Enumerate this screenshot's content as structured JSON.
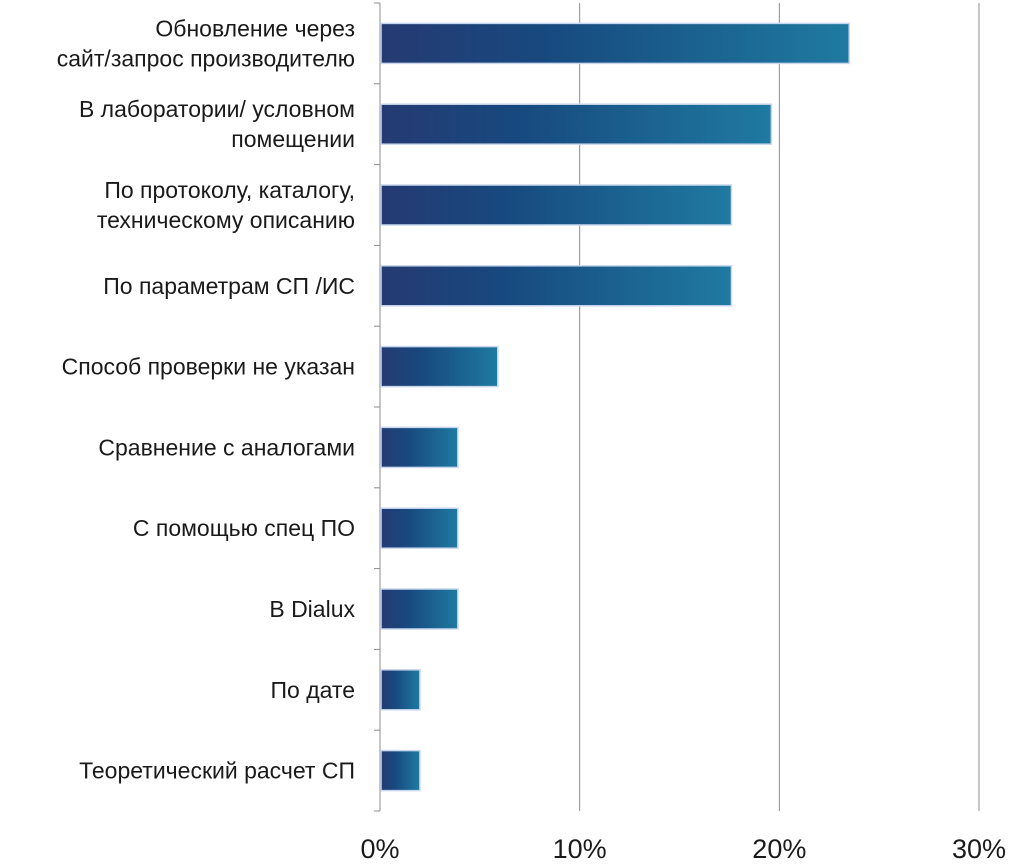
{
  "chart_data": {
    "type": "bar",
    "orientation": "horizontal",
    "title": "",
    "xlabel": "",
    "ylabel": "",
    "categories": [
      [
        "Обновление через",
        "сайт/запрос производителю"
      ],
      [
        "В лаборатории/ условном",
        "помещении"
      ],
      [
        "По протоколу, каталогу,",
        "техническому описанию"
      ],
      [
        "По параметрам СП /ИС"
      ],
      [
        "Способ проверки не указан"
      ],
      [
        "Сравнение с аналогами"
      ],
      [
        "С помощью спец ПО"
      ],
      [
        "В Dialux"
      ],
      [
        "По дате"
      ],
      [
        "Теоретический расчет СП"
      ]
    ],
    "values": [
      23.5,
      19.6,
      17.6,
      17.6,
      5.9,
      3.9,
      3.9,
      3.9,
      2.0,
      2.0
    ],
    "xlim": [
      0,
      30
    ],
    "ticks": [
      0,
      10,
      20,
      30
    ],
    "tick_labels": [
      "0%",
      "10%",
      "20%",
      "30%"
    ],
    "grid": "vertical",
    "legend": "none",
    "bar_gradient": [
      "#253a72",
      "#17497f",
      "#1f7aa1"
    ]
  }
}
